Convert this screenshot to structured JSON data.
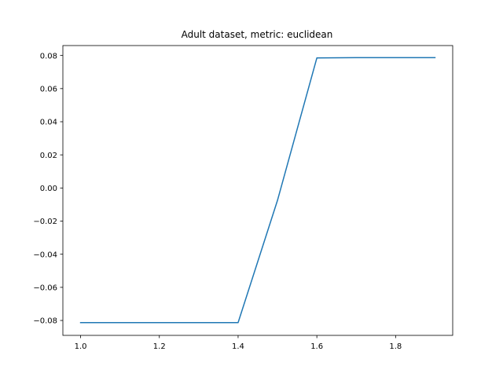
{
  "chart_data": {
    "type": "line",
    "title": "Adult dataset, metric: euclidean",
    "xlabel": "",
    "ylabel": "",
    "xlim": [
      0.955,
      1.945
    ],
    "ylim": [
      -0.089,
      0.086
    ],
    "xticks": [
      1.0,
      1.2,
      1.4,
      1.6,
      1.8
    ],
    "xtick_labels": [
      "1.0",
      "1.2",
      "1.4",
      "1.6",
      "1.8"
    ],
    "yticks": [
      -0.08,
      -0.06,
      -0.04,
      -0.02,
      0.0,
      0.02,
      0.04,
      0.06,
      0.08
    ],
    "ytick_labels": [
      "−0.08",
      "−0.06",
      "−0.04",
      "−0.02",
      "0.00",
      "0.02",
      "0.04",
      "0.06",
      "0.08"
    ],
    "grid": false,
    "series": [
      {
        "color": "#1f77b4",
        "x": [
          1.0,
          1.1,
          1.2,
          1.3,
          1.4,
          1.5,
          1.6,
          1.7,
          1.8,
          1.9
        ],
        "y": [
          -0.0813,
          -0.0813,
          -0.0813,
          -0.0813,
          -0.0813,
          -0.0075,
          0.0785,
          0.0787,
          0.0787,
          0.0787
        ]
      }
    ]
  }
}
